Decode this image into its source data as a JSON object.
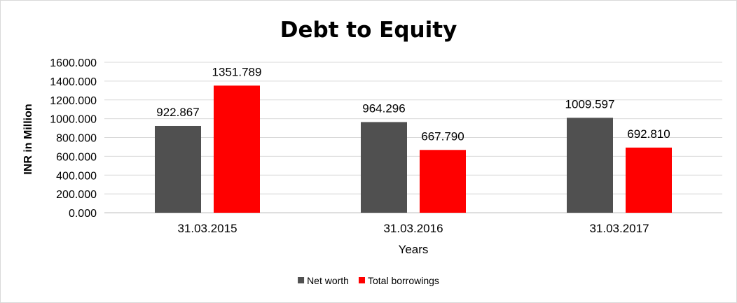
{
  "chart_data": {
    "type": "bar",
    "title": "Debt to Equity",
    "xlabel": "Years",
    "ylabel": "INR in Million",
    "ylim": [
      0,
      1600
    ],
    "yticks": [
      "0.000",
      "200.000",
      "400.000",
      "600.000",
      "800.000",
      "1000.000",
      "1200.000",
      "1400.000",
      "1600.000"
    ],
    "categories": [
      "31.03.2015",
      "31.03.2016",
      "31.03.2017"
    ],
    "series": [
      {
        "name": "Net worth",
        "color": "#505050",
        "values": [
          922.867,
          964.296,
          1009.597
        ],
        "labels": [
          "922.867",
          "964.296",
          "1009.597"
        ]
      },
      {
        "name": "Total borrowings",
        "color": "#ff0000",
        "values": [
          1351.789,
          667.79,
          692.81
        ],
        "labels": [
          "1351.789",
          "667.790",
          "692.810"
        ]
      }
    ],
    "grid": true,
    "legend": "bottom"
  }
}
